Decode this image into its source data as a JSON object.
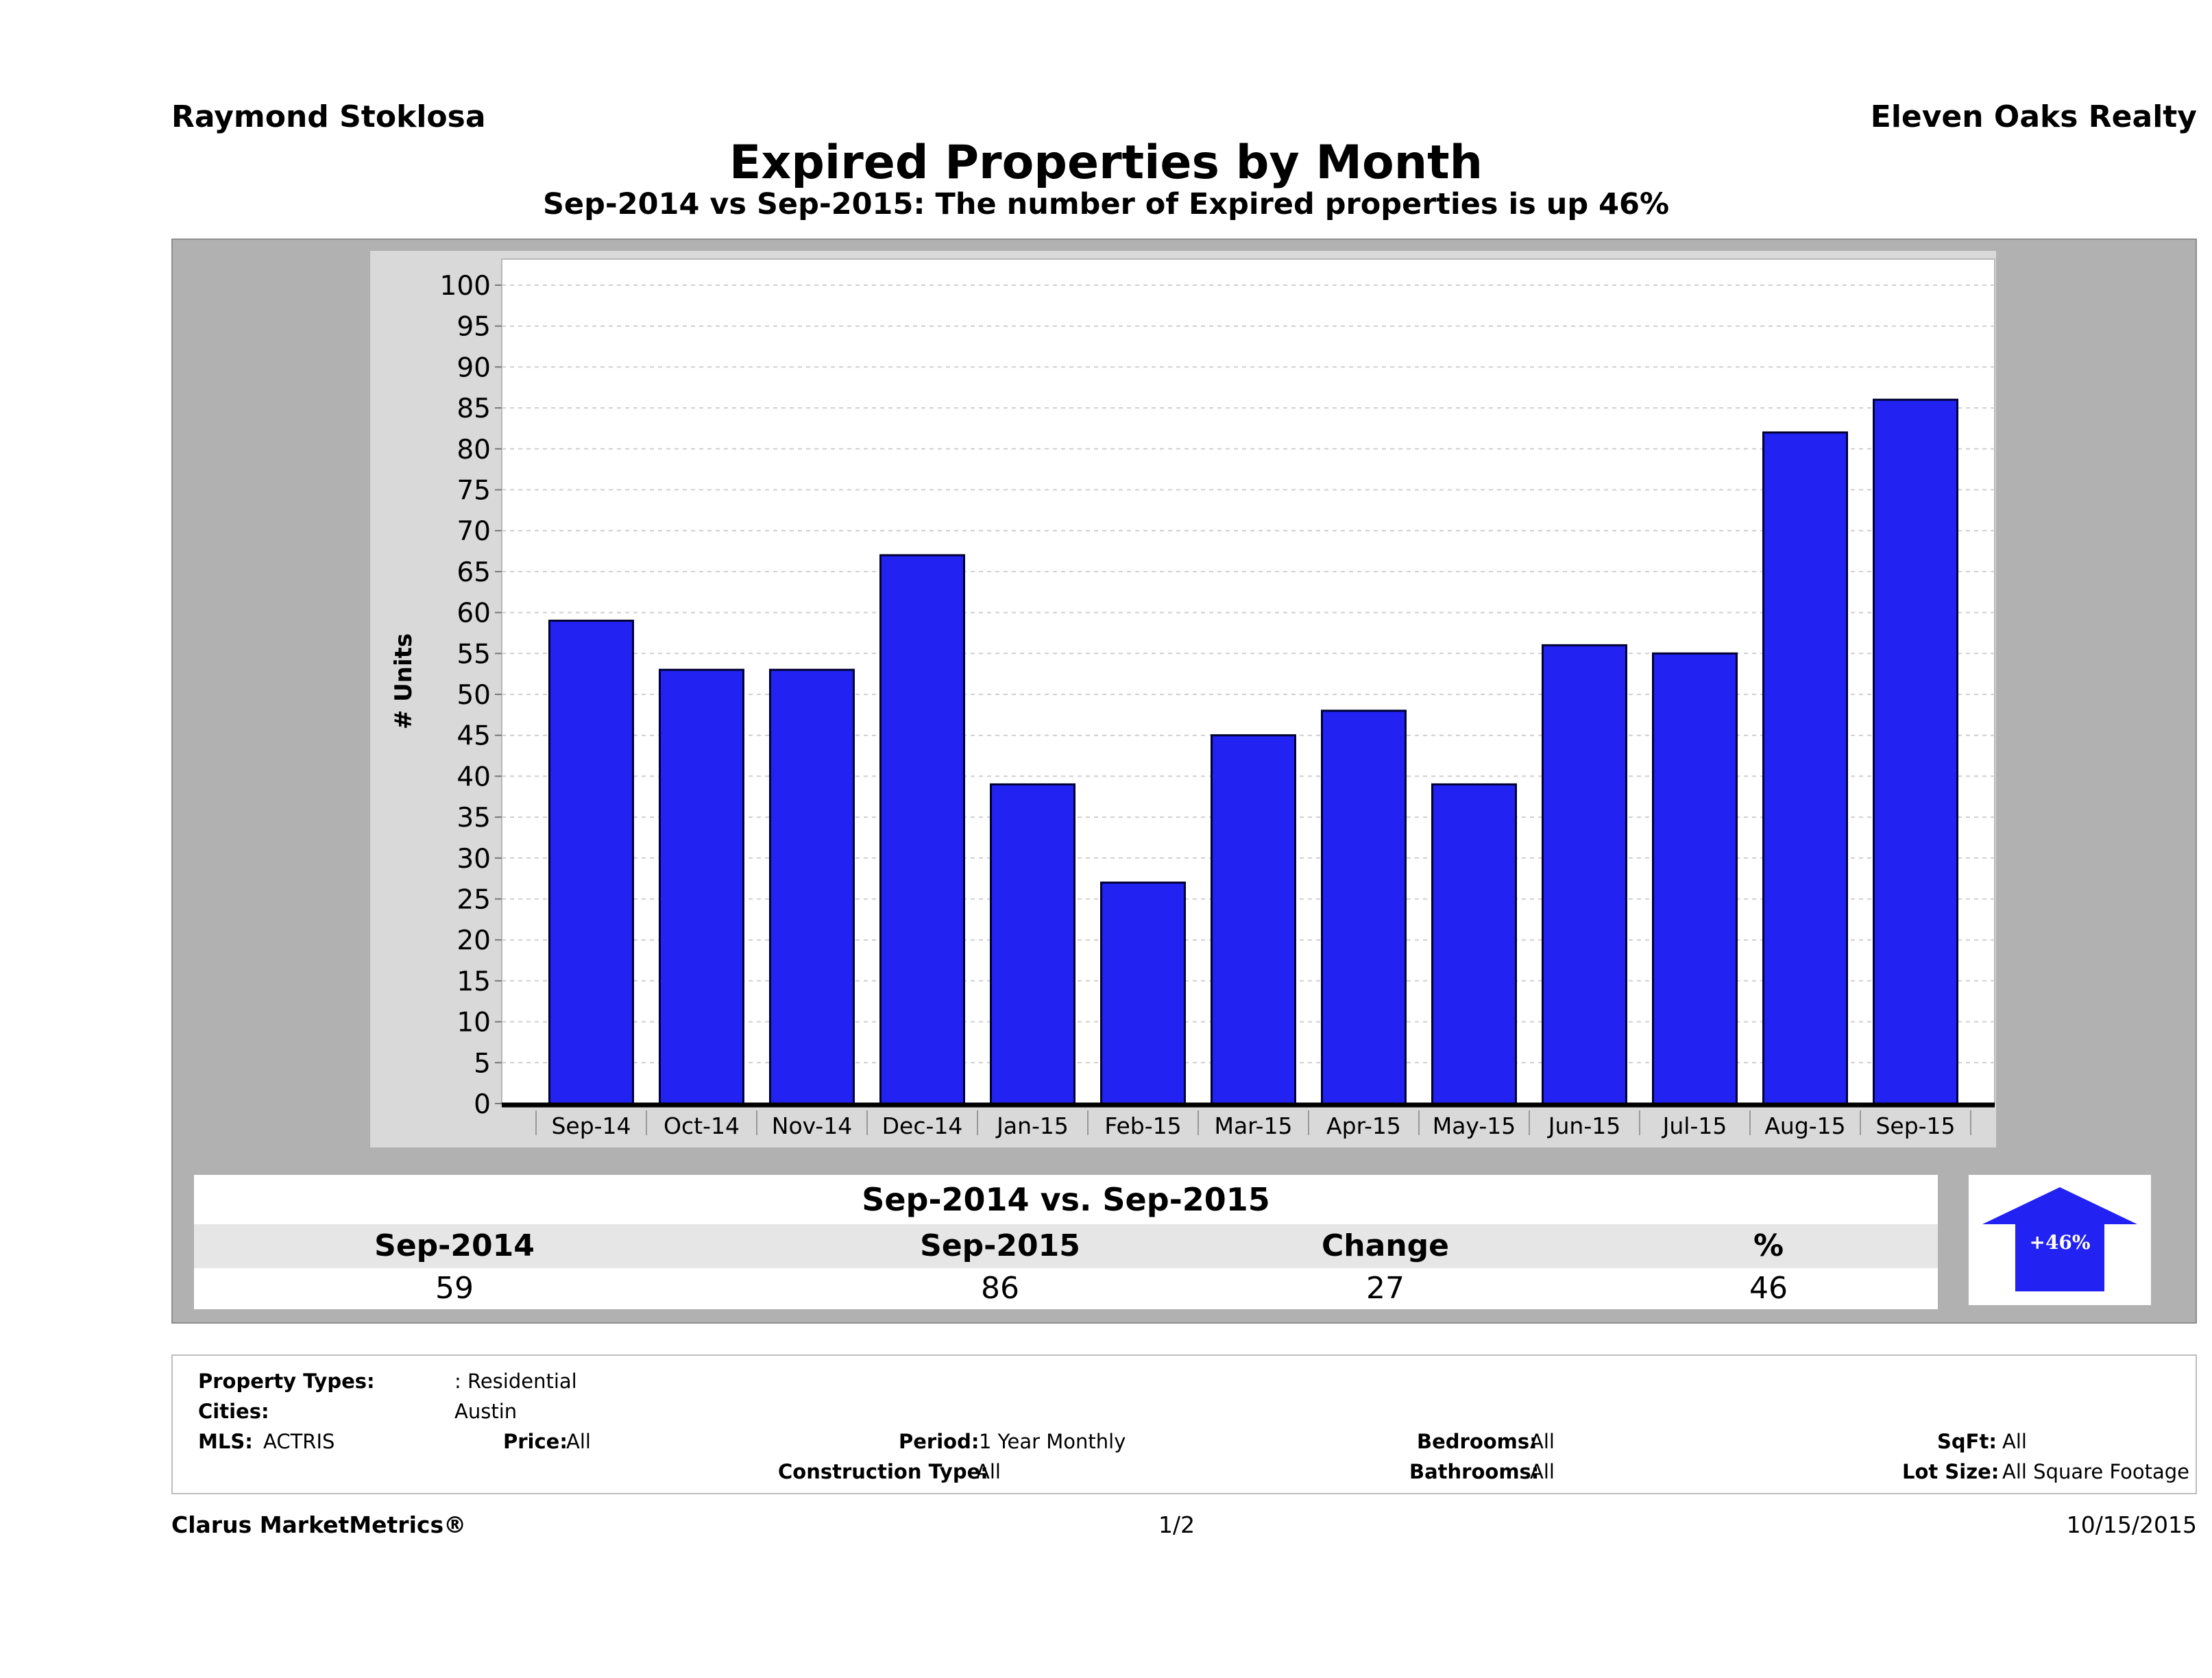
{
  "header": {
    "agent": "Raymond Stoklosa",
    "company": "Eleven Oaks Realty",
    "title": "Expired Properties by Month",
    "subtitle": "Sep-2014 vs Sep-2015: The number of Expired  properties is up 46%"
  },
  "chart_data": {
    "type": "bar",
    "title": "Expired Properties by Month",
    "subtitle": "Sep-2014 vs Sep-2015: The number of Expired  properties is up 46%",
    "ylabel": "# Units",
    "xlabel": "",
    "ylim": [
      0,
      100
    ],
    "yticks": [
      0,
      5,
      10,
      15,
      20,
      25,
      30,
      35,
      40,
      45,
      50,
      55,
      60,
      65,
      70,
      75,
      80,
      85,
      90,
      95,
      100
    ],
    "grid": true,
    "categories": [
      "Sep-14",
      "Oct-14",
      "Nov-14",
      "Dec-14",
      "Jan-15",
      "Feb-15",
      "Mar-15",
      "Apr-15",
      "May-15",
      "Jun-15",
      "Jul-15",
      "Aug-15",
      "Sep-15"
    ],
    "values": [
      59,
      53,
      53,
      67,
      39,
      27,
      45,
      48,
      39,
      56,
      55,
      82,
      86
    ],
    "bar_color": "#2222f2"
  },
  "summary": {
    "title": "Sep-2014 vs. Sep-2015",
    "headers": [
      "Sep-2014",
      "Sep-2015",
      "Change",
      "%"
    ],
    "values": [
      "59",
      "86",
      "27",
      "46"
    ],
    "badge": "+46%",
    "badge_color": "#2222f2"
  },
  "criteria": {
    "property_types_label": "Property Types:",
    "property_types_value": ": Residential",
    "cities_label": "Cities:",
    "cities_value": "Austin",
    "mls_label": "MLS:",
    "mls_value": "ACTRIS",
    "price_label": "Price:",
    "price_value": "All",
    "period_label": "Period:",
    "period_value": "1 Year Monthly",
    "construction_label": "Construction Type:",
    "construction_value": "All",
    "bedrooms_label": "Bedrooms:",
    "bedrooms_value": "All",
    "bathrooms_label": "Bathrooms:",
    "bathrooms_value": "All",
    "sqft_label": "SqFt:",
    "sqft_value": "All",
    "lotsize_label": "Lot Size:",
    "lotsize_value": "All Square Footage"
  },
  "footer": {
    "brand": "Clarus MarketMetrics®",
    "page": "1/2",
    "date": "10/15/2015"
  }
}
